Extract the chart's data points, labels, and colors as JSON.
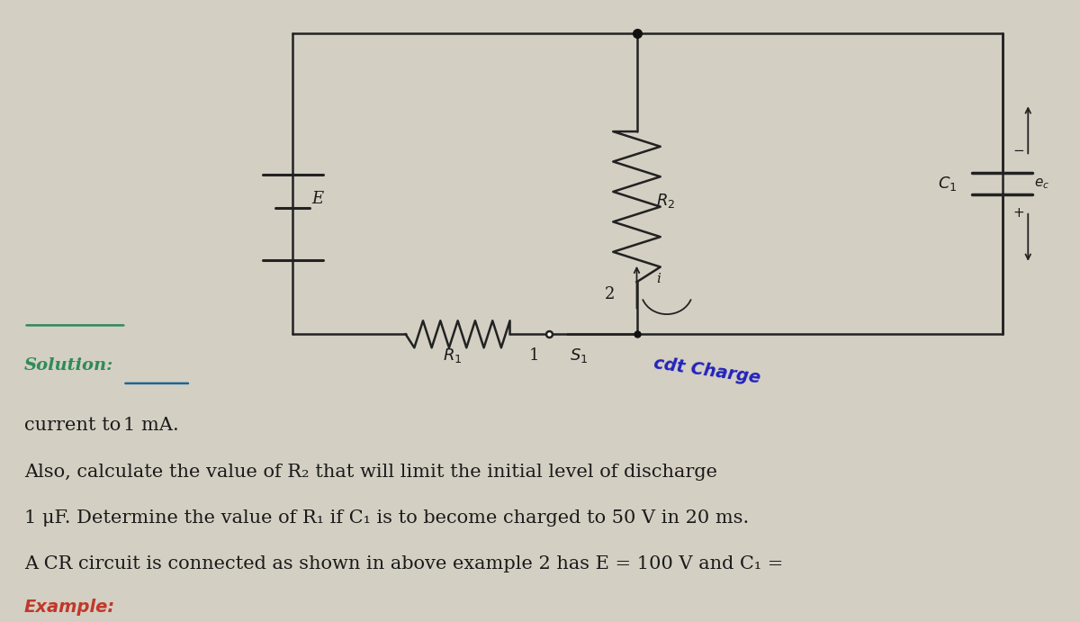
{
  "bg_color": "#d4cfc3",
  "title": "Example:",
  "title_color": "#c0392b",
  "body_line1": "A CR circuit is connected as shown in above example 2 has E = 100 V and C₁ =",
  "body_line2": "1 μF. Determine the value of R₁ if C₁ is to become charged to 50 V in 20 ms.",
  "body_line3": "Also, calculate the value of R₂ that will limit the initial level of discharge",
  "body_line4a": "current to ",
  "body_line4b": "1 mA.",
  "solution_label": "Solution:",
  "solution_color": "#2e8b57",
  "handwritten_label": "cdt Charge",
  "handwritten_color": "#2222bb",
  "text_color": "#1a1a1a",
  "font_size_body": 15,
  "font_size_title": 14,
  "font_size_circuit": 13,
  "underline_color": "#1a6699",
  "circuit_color": "#222222",
  "lw": 1.8
}
